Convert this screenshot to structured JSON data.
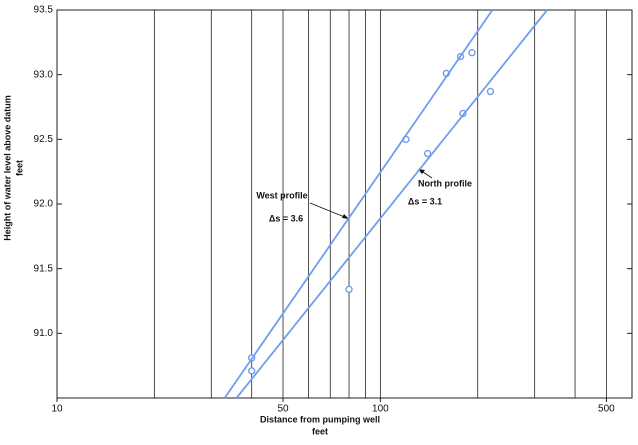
{
  "chart_data": {
    "type": "scatter",
    "x_label": [
      "Distance from pumping well",
      "feet"
    ],
    "y_label": [
      "Height of water level above datum",
      "feet"
    ],
    "xscale": "log",
    "xlim": [
      10,
      600
    ],
    "ylim": [
      90.5,
      93.5
    ],
    "xticks": [
      10,
      50,
      100,
      500
    ],
    "x_gridlines": [
      20,
      30,
      40,
      50,
      60,
      70,
      80,
      90,
      100,
      200,
      300,
      400,
      500
    ],
    "yticks": [
      {
        "value": 91,
        "label": "91.0"
      },
      91.5,
      {
        "value": 92,
        "label": "92.0"
      },
      92.5,
      {
        "value": 93,
        "label": "93.0"
      },
      93.5
    ],
    "series": [
      {
        "mode": "markers",
        "color": "#6f9ef0",
        "x": [
          40,
          120,
          160,
          177,
          192
        ],
        "y": [
          90.81,
          92.5,
          93.01,
          93.14,
          93.17
        ]
      },
      {
        "mode": "markers",
        "color": "#6f9ef0",
        "x": [
          40,
          80,
          140,
          180,
          219
        ],
        "y": [
          90.71,
          91.34,
          92.39,
          92.7,
          92.87
        ]
      },
      {
        "mode": "line",
        "color": "#6f9ef0",
        "x": [
          33,
          222
        ],
        "y": [
          90.5,
          93.5
        ]
      },
      {
        "mode": "line",
        "color": "#6f9ef0",
        "x": [
          35.9,
          328
        ],
        "y": [
          90.5,
          93.5
        ]
      }
    ],
    "annotations": [
      "West profile",
      "Δs = 3.6",
      "North profile",
      "Δs = 3.1"
    ]
  }
}
